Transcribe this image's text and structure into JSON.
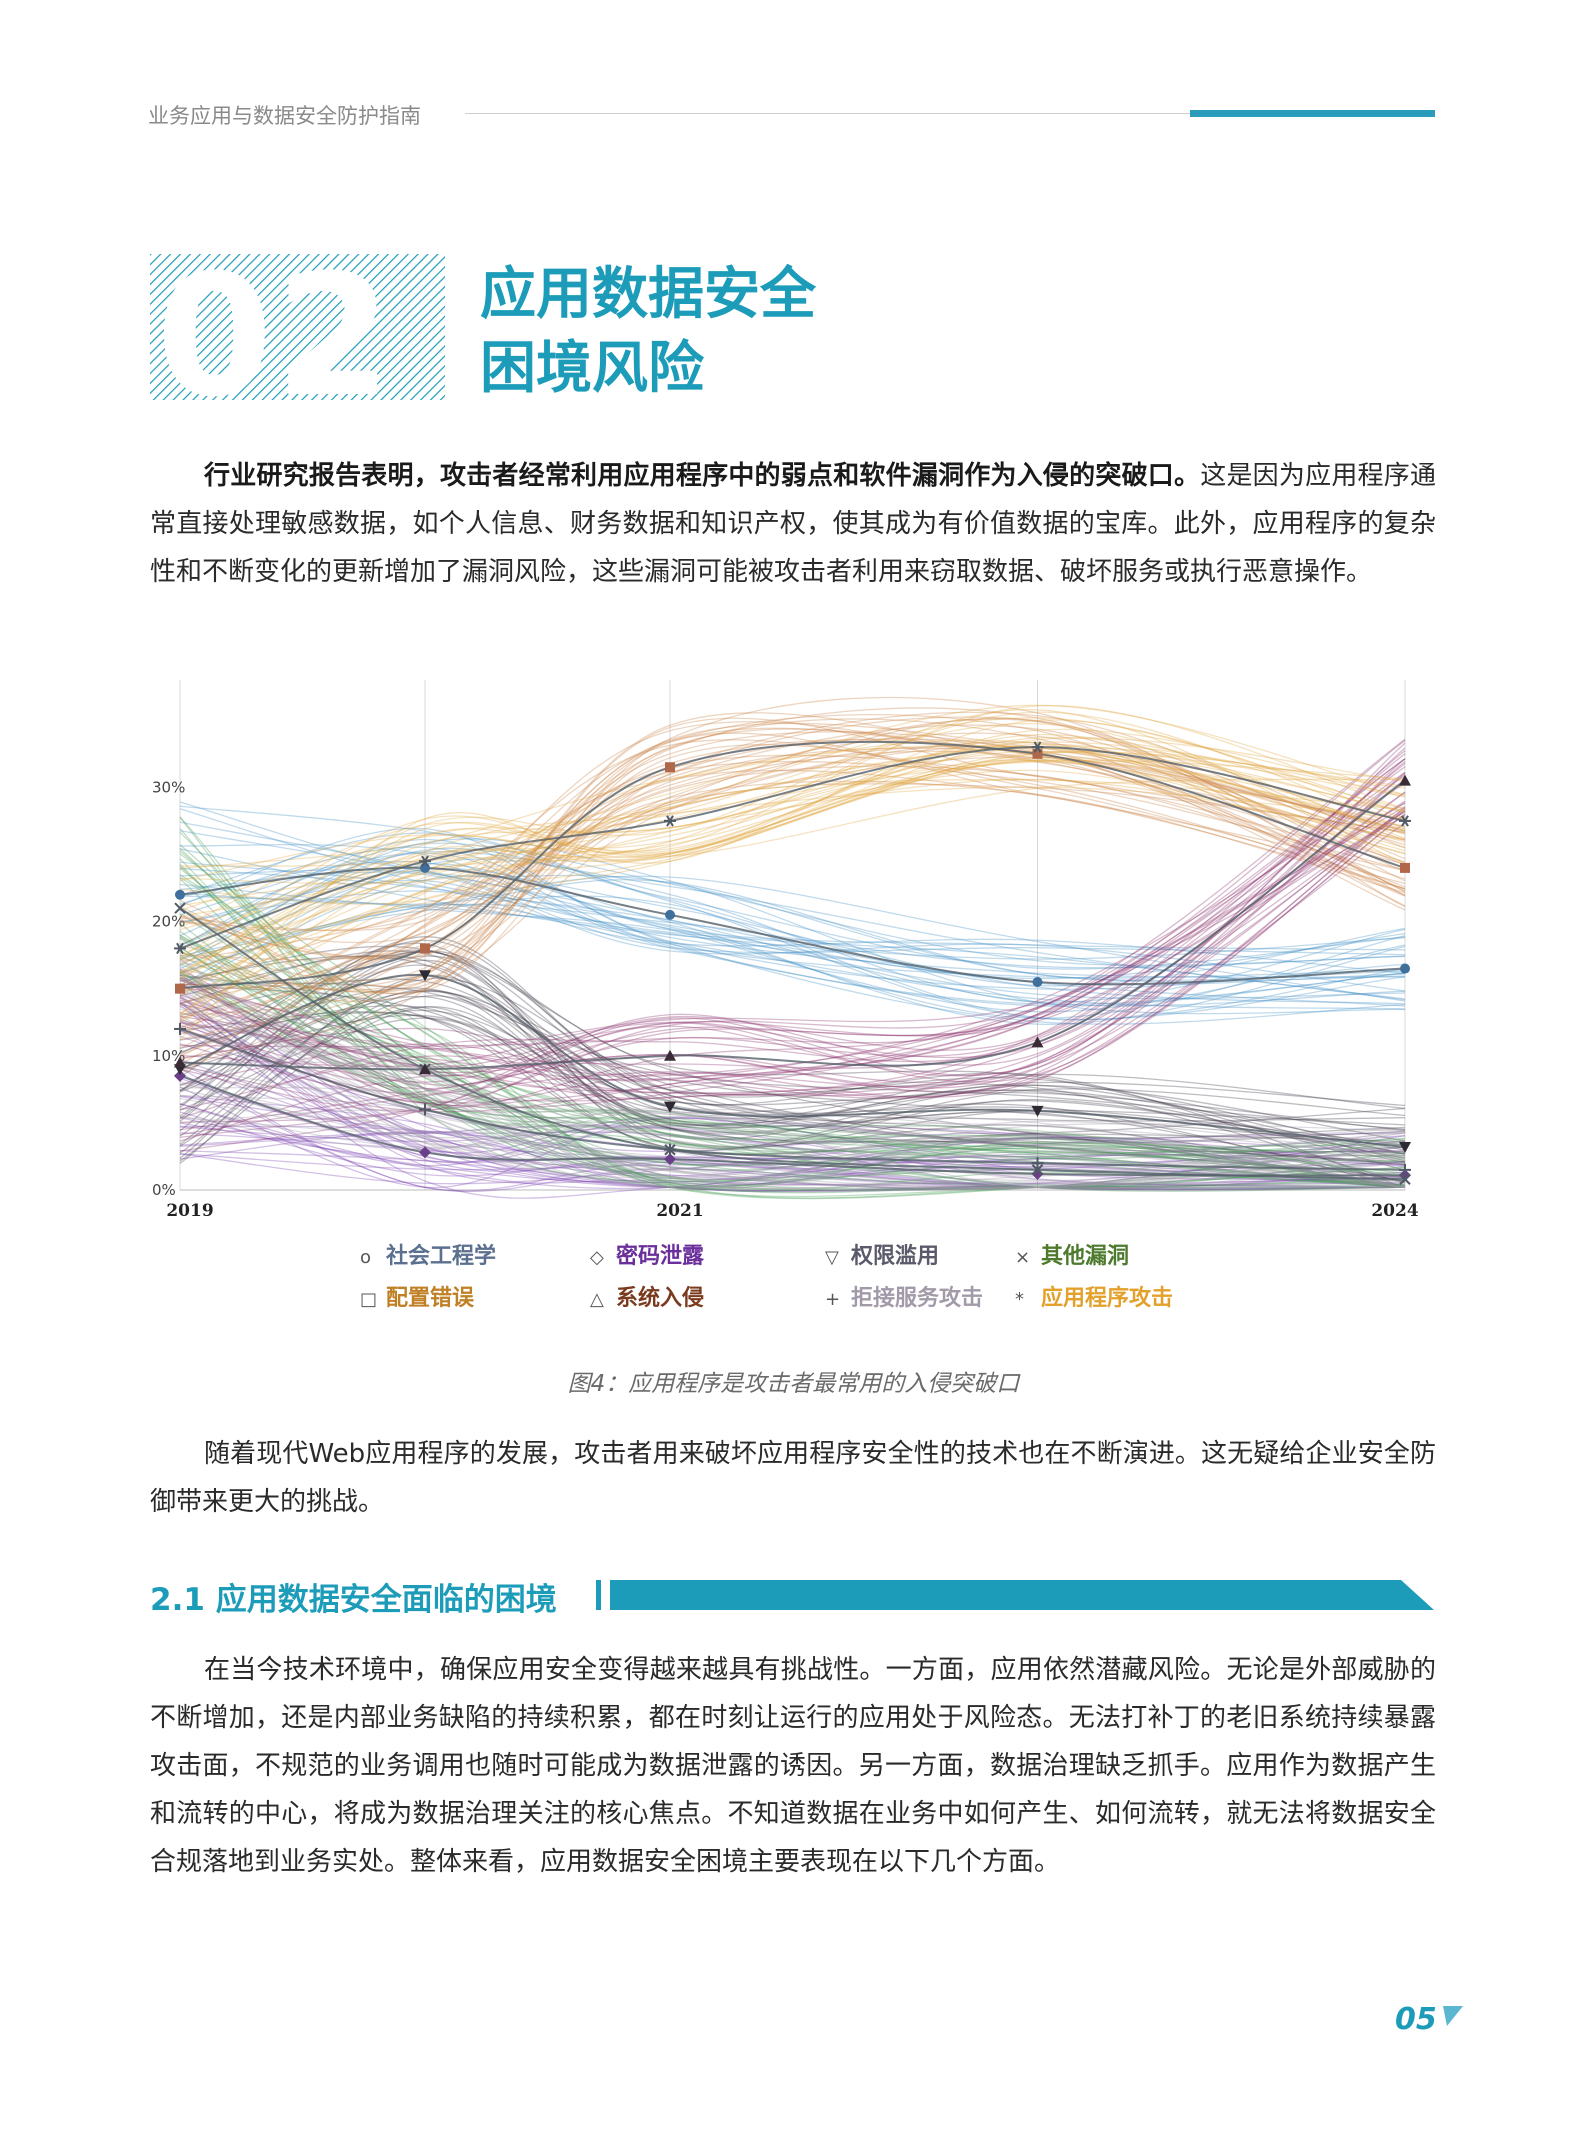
{
  "header": {
    "running_title": "业务应用与数据安全防护指南"
  },
  "chapter": {
    "number": "02",
    "title_line1": "应用数据安全",
    "title_line2": "困境风险"
  },
  "intro": {
    "bold_sentence": "行业研究报告表明，攻击者经常利用应用程序中的弱点和软件漏洞作为入侵的突破口。",
    "rest": "这是因为应用程序通常直接处理敏感数据，如个人信息、财务数据和知识产权，使其成为有价值数据的宝库。此外，应用程序的复杂性和不断变化的更新增加了漏洞风险，这些漏洞可能被攻击者利用来窃取数据、破坏服务或执行恶意操作。"
  },
  "figure": {
    "caption": "图4：应用程序是攻击者最常用的入侵突破口"
  },
  "para2": "随着现代Web应用程序的发展，攻击者用来破坏应用程序安全性的技术也在不断演进。这无疑给企业安全防御带来更大的挑战。",
  "section": {
    "heading": "2.1 应用数据安全面临的困境",
    "body": "在当今技术环境中，确保应用安全变得越来越具有挑战性。一方面，应用依然潜藏风险。无论是外部威胁的不断增加，还是内部业务缺陷的持续积累，都在时刻让运行的应用处于风险态。无法打补丁的老旧系统持续暴露攻击面，不规范的业务调用也随时可能成为数据泄露的诱因。另一方面，数据治理缺乏抓手。应用作为数据产生和流转的中心，将成为数据治理关注的核心焦点。不知道数据在业务中如何产生、如何流转，就无法将数据安全合规落地到业务实处。整体来看，应用数据安全困境主要表现在以下几个方面。"
  },
  "page_number": "05",
  "chart_data": {
    "type": "line",
    "x": [
      2019,
      2020,
      2021,
      2022.5,
      2024
    ],
    "x_tick_labels": [
      "2019",
      "2021",
      "2024"
    ],
    "y_tick_labels": [
      "0%",
      "10%",
      "20%",
      "30%"
    ],
    "ylim": [
      0,
      38
    ],
    "grid": "vertical",
    "legend_position": "bottom",
    "series": [
      {
        "name": "社会工程学",
        "marker": "o",
        "color": "#3f8fc4",
        "values": [
          22,
          24,
          20.5,
          15.5,
          16.5
        ]
      },
      {
        "name": "密码泄露",
        "marker": "◇",
        "color": "#7a3fb0",
        "values": [
          8.5,
          2.8,
          2.3,
          1.2,
          1.1
        ]
      },
      {
        "name": "权限滥用",
        "marker": "▽",
        "color": "#3b3344",
        "values": [
          9,
          16,
          6.2,
          5.9,
          3.2
        ]
      },
      {
        "name": "其他漏洞",
        "marker": "×",
        "color": "#3f9a4e",
        "values": [
          21,
          9,
          3,
          1.5,
          0.8
        ]
      },
      {
        "name": "配置错误",
        "marker": "□",
        "color": "#c97f43",
        "values": [
          15,
          18,
          31.5,
          32.5,
          24
        ]
      },
      {
        "name": "系统入侵",
        "marker": "△",
        "color": "#8a2f6a",
        "values": [
          9.5,
          9,
          10,
          11,
          30.5
        ]
      },
      {
        "name": "拒接服务攻击",
        "marker": "+",
        "color": "#9c96a5",
        "values": [
          12,
          6,
          3,
          2,
          1.5
        ]
      },
      {
        "name": "应用程序攻击",
        "marker": "*",
        "color": "#e0a640",
        "values": [
          18,
          24.5,
          27.5,
          33,
          27.5
        ]
      }
    ]
  },
  "legend_colors": [
    "#5b6f8f",
    "#6a2f9a",
    "#5a5a6a",
    "#4e7a2e",
    "#c08026",
    "#7a3a1e",
    "#a29aa8",
    "#e3a12b"
  ]
}
